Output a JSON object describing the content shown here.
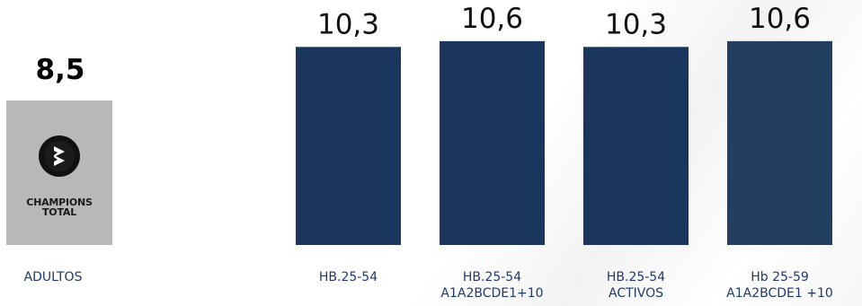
{
  "adults": {
    "value": "8,5",
    "label": "ADULTOS",
    "logo": {
      "icon": "champions-total-logo",
      "line1": "CHAMPIONS",
      "line2": "TOTAL"
    }
  },
  "chart_data": {
    "type": "bar",
    "categories": [
      [
        "HB.25-54"
      ],
      [
        "HB.25-54",
        "A1A2BCDE1+10"
      ],
      [
        "HB.25-54",
        "ACTIVOS"
      ],
      [
        "Hb 25-59",
        "A1A2BCDE1 +10"
      ]
    ],
    "values": [
      10.3,
      10.6,
      10.3,
      10.6
    ],
    "value_labels": [
      "10,3",
      "10,6",
      "10,3",
      "10,6"
    ],
    "bar_colors": [
      "#1a365d",
      "#1a365d",
      "#1a365d",
      "#233f60"
    ],
    "label_color": "#1f3b6a",
    "value_label_color": "#111111",
    "ylim": [
      0,
      11.2
    ],
    "grid": false
  }
}
